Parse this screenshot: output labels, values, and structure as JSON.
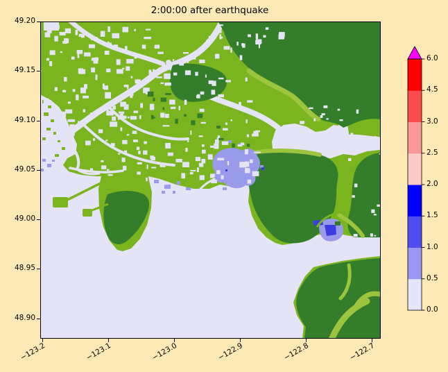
{
  "figure": {
    "title": "2:00:00 after earthquake",
    "background_color": "#fce9b5"
  },
  "chart_data": {
    "type": "heatmap",
    "title": "2:00:00 after earthquake",
    "xlabel": "",
    "ylabel": "",
    "grid": false,
    "xlim": [
      -123.2032,
      -122.6885
    ],
    "ylim": [
      48.8809,
      49.2
    ],
    "x_ticks": [
      -123.2,
      -123.1,
      -123.0,
      -122.9,
      -122.8,
      -122.7
    ],
    "x_tick_labels": [
      "−123.2",
      "−123.1",
      "−123.0",
      "−122.9",
      "−122.8",
      "−122.7"
    ],
    "x_tick_rotation_deg": 30,
    "y_ticks": [
      49.2,
      49.15,
      49.1,
      49.05,
      49.0,
      48.95,
      48.9
    ],
    "y_tick_labels": [
      "49.20",
      "49.15",
      "49.10",
      "49.05",
      "49.00",
      "48.95",
      "48.90"
    ],
    "colorbar": {
      "orientation": "vertical",
      "position": "right",
      "extend": "max",
      "boundaries": [
        0.0,
        0.5,
        1.0,
        1.5,
        2.0,
        2.5,
        3.0,
        4.5,
        6.0
      ],
      "tick_labels": [
        "0.0",
        "0.5",
        "1.0",
        "1.5",
        "2.0",
        "2.5",
        "3.0",
        "4.5",
        "6.0"
      ],
      "segment_colors": [
        "#e6e6fa",
        "#9999f2",
        "#4d4df0",
        "#0000ff",
        "#fdcaca",
        "#fa9797",
        "#fa4c4c",
        "#fe0000"
      ],
      "over_color": "#ff00ff",
      "outline_color": "#000000"
    },
    "map_colors": {
      "sea": "#e4e4f6",
      "land_low": "#7ab41e",
      "land_mid": "#9cc43c",
      "land_high": "#347d2b",
      "flood_light": "#9a9aea",
      "flood_medium": "#3c3cdf"
    }
  }
}
